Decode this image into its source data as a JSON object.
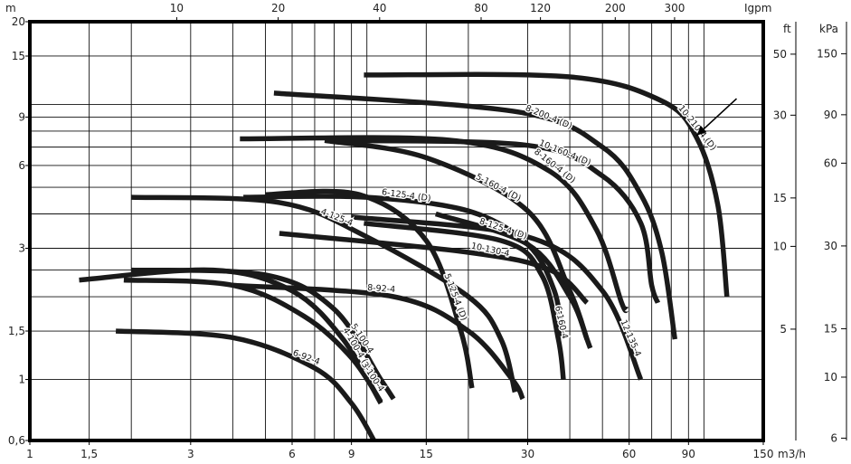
{
  "chart_data": {
    "type": "line",
    "title": "",
    "x_scale": "log",
    "y_scale": "log",
    "xlim": [
      1,
      150
    ],
    "ylim": [
      0.6,
      20
    ],
    "x_unit": "m3/h",
    "y_unit": "m",
    "x_ticks": [
      {
        "v": 1,
        "label": "1"
      },
      {
        "v": 1.5,
        "label": "1,5"
      },
      {
        "v": 3,
        "label": "3"
      },
      {
        "v": 6,
        "label": "6"
      },
      {
        "v": 9,
        "label": "9"
      },
      {
        "v": 15,
        "label": "15"
      },
      {
        "v": 30,
        "label": "30"
      },
      {
        "v": 60,
        "label": "60"
      },
      {
        "v": 90,
        "label": "90"
      },
      {
        "v": 150,
        "label": "150"
      }
    ],
    "y_ticks": [
      {
        "v": 0.6,
        "label": "0,6"
      },
      {
        "v": 1,
        "label": "1"
      },
      {
        "v": 1.5,
        "label": "1,5"
      },
      {
        "v": 3,
        "label": "3"
      },
      {
        "v": 6,
        "label": "6"
      },
      {
        "v": 9,
        "label": "9"
      },
      {
        "v": 15,
        "label": "15"
      },
      {
        "v": 20,
        "label": "20"
      }
    ],
    "top_axis": {
      "unit": "Igpm",
      "ticks": [
        {
          "v": 10,
          "label": "10"
        },
        {
          "v": 20,
          "label": "20"
        },
        {
          "v": 40,
          "label": "40"
        },
        {
          "v": 80,
          "label": "80"
        },
        {
          "v": 120,
          "label": "120"
        },
        {
          "v": 200,
          "label": "200"
        },
        {
          "v": 300,
          "label": "300"
        }
      ]
    },
    "right_axis_ft": {
      "unit": "ft",
      "ticks": [
        {
          "v": 5,
          "label": "5"
        },
        {
          "v": 10,
          "label": "10"
        },
        {
          "v": 15,
          "label": "15"
        },
        {
          "v": 30,
          "label": "30"
        },
        {
          "v": 50,
          "label": "50"
        }
      ]
    },
    "right_axis_kpa": {
      "unit": "kPa",
      "ticks": [
        {
          "v": 6,
          "label": "6"
        },
        {
          "v": 10,
          "label": "10"
        },
        {
          "v": 15,
          "label": "15"
        },
        {
          "v": 30,
          "label": "30"
        },
        {
          "v": 60,
          "label": "60"
        },
        {
          "v": 90,
          "label": "90"
        },
        {
          "v": 150,
          "label": "150"
        }
      ]
    },
    "x_grid": [
      1.5,
      2,
      3,
      4,
      5,
      6,
      7,
      8,
      9,
      10,
      15,
      20,
      30,
      40,
      50,
      60,
      70,
      80,
      90,
      100,
      150
    ],
    "y_grid": [
      0.6,
      1,
      1.5,
      2,
      2.5,
      3,
      4,
      5,
      6,
      7,
      8,
      9,
      10,
      15,
      20
    ],
    "grid": true,
    "series": [
      {
        "name": "10-210-4 (D)",
        "points": [
          [
            9.8,
            12.8
          ],
          [
            40,
            12.6
          ],
          [
            75,
            10.3
          ],
          [
            95,
            7.6
          ],
          [
            110,
            4.3
          ],
          [
            117,
            2.0
          ]
        ],
        "label_at": 92
      },
      {
        "name": "8-200-4 (D)",
        "points": [
          [
            5.3,
            11.0
          ],
          [
            28,
            9.4
          ],
          [
            50,
            7.0
          ],
          [
            65,
            4.7
          ],
          [
            75,
            2.9
          ],
          [
            82,
            1.4
          ]
        ],
        "label_at": 34
      },
      {
        "name": "10-160-4 (D)",
        "points": [
          [
            7.5,
            7.4
          ],
          [
            30,
            7.1
          ],
          [
            50,
            5.5
          ],
          [
            65,
            3.7
          ],
          [
            70,
            2.2
          ],
          [
            73,
            1.9
          ]
        ],
        "label_at": 38
      },
      {
        "name": "8-160-4 (D)",
        "points": [
          [
            4.2,
            7.5
          ],
          [
            18,
            7.4
          ],
          [
            35,
            5.7
          ],
          [
            48,
            3.5
          ],
          [
            57,
            1.9
          ],
          [
            59,
            1.8
          ]
        ],
        "label_at": 35
      },
      {
        "name": "5-160-4 (D)",
        "points": [
          [
            7.5,
            7.4
          ],
          [
            15,
            6.4
          ],
          [
            30,
            4.1
          ],
          [
            40,
            2.1
          ],
          [
            45,
            1.4
          ],
          [
            46,
            1.3
          ]
        ],
        "label_at": 24
      },
      {
        "name": "6-125-4 (D)",
        "points": [
          [
            4.3,
            4.6
          ],
          [
            10,
            4.6
          ],
          [
            20,
            4.1
          ],
          [
            30,
            3.1
          ],
          [
            36,
            2.1
          ],
          [
            38,
            1.4
          ]
        ],
        "label_at": 13
      },
      {
        "name": "8-125-4 (D)",
        "points": [
          [
            16,
            4.0
          ],
          [
            30,
            3.1
          ],
          [
            40,
            2.0
          ],
          [
            45,
            1.4
          ]
        ],
        "label_at": 25
      },
      {
        "name": "4-125-4",
        "points": [
          [
            2.0,
            4.6
          ],
          [
            5.5,
            4.4
          ],
          [
            10,
            3.3
          ],
          [
            20,
            2.0
          ],
          [
            25,
            1.4
          ],
          [
            27.5,
            0.9
          ]
        ],
        "label_at": 8
      },
      {
        "name": "6-160-4",
        "points": [
          [
            9.8,
            3.7
          ],
          [
            25,
            3.2
          ],
          [
            33,
            2.4
          ],
          [
            37,
            1.4
          ],
          [
            38.3,
            1.0
          ]
        ],
        "label_at": 36
      },
      {
        "name": "10-130-4",
        "points": [
          [
            5.5,
            3.4
          ],
          [
            20,
            2.9
          ],
          [
            35,
            2.5
          ],
          [
            45,
            1.9
          ]
        ],
        "label_at": 23
      },
      {
        "name": "12-135-4",
        "points": [
          [
            9.0,
            3.9
          ],
          [
            30,
            3.3
          ],
          [
            50,
            2.1
          ],
          [
            65,
            1.0
          ]
        ],
        "label_at": 58
      },
      {
        "name": "5-125-4 (D)",
        "points": [
          [
            5.0,
            4.7
          ],
          [
            9.5,
            4.7
          ],
          [
            15,
            3.2
          ],
          [
            19,
            1.5
          ],
          [
            20.5,
            0.93
          ]
        ],
        "label_at": 17.5
      },
      {
        "name": "8-92-4",
        "points": [
          [
            4.0,
            2.2
          ],
          [
            12,
            2.0
          ],
          [
            20,
            1.5
          ],
          [
            27,
            1.0
          ],
          [
            29,
            0.85
          ]
        ],
        "label_at": 11
      },
      {
        "name": "5-100-4",
        "points": [
          [
            2.0,
            2.5
          ],
          [
            5.0,
            2.4
          ],
          [
            8.0,
            1.8
          ],
          [
            11,
            1.0
          ],
          [
            12,
            0.85
          ]
        ],
        "label_at": 9.3
      },
      {
        "name": "4-100-4 (D)",
        "points": [
          [
            1.4,
            2.3
          ],
          [
            3.5,
            2.5
          ],
          [
            6.0,
            2.1
          ],
          [
            8.5,
            1.4
          ],
          [
            11,
            0.82
          ]
        ],
        "label_at": 9.0
      },
      {
        "name": "3-100-4",
        "points": [
          [
            1.9,
            2.3
          ],
          [
            4.0,
            2.2
          ],
          [
            6.5,
            1.7
          ],
          [
            9.0,
            1.2
          ],
          [
            11,
            0.83
          ]
        ],
        "label_at": 10.0
      },
      {
        "name": "6-92-4",
        "points": [
          [
            1.8,
            1.5
          ],
          [
            4.0,
            1.42
          ],
          [
            7.0,
            1.1
          ],
          [
            9.0,
            0.82
          ],
          [
            10.5,
            0.6
          ]
        ],
        "label_at": 6.5
      }
    ],
    "annotations": [
      {
        "type": "arrow",
        "from": [
          125,
          10.5
        ],
        "to": [
          95,
          7.7
        ]
      }
    ]
  }
}
